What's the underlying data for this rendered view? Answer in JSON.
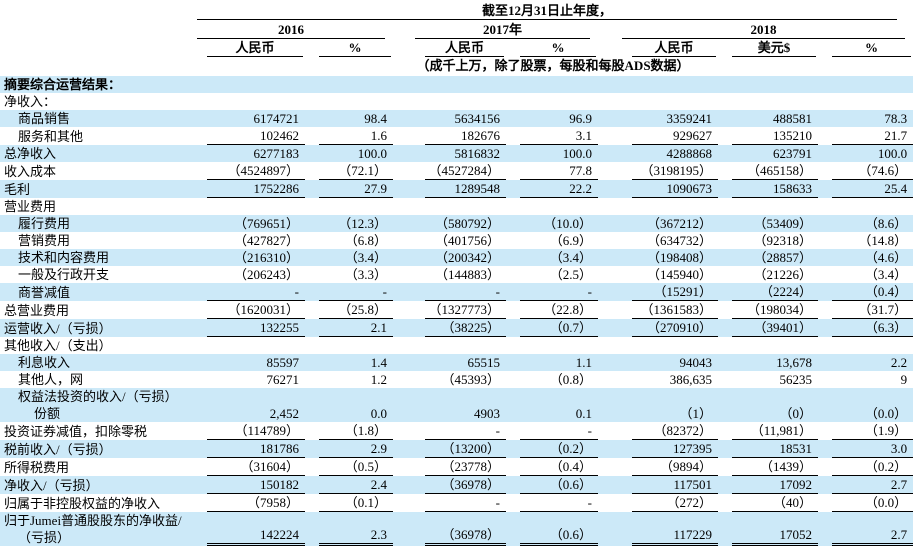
{
  "colors": {
    "stripe_blue": "#CCE9F8",
    "rule_black": "#000000",
    "text_black": "#000000"
  },
  "header": {
    "title": "截至12月31日止年度，",
    "subtitle": "（成千上万，除了股票，每股和每股ADS数据）",
    "year_groups": [
      {
        "label": "2016",
        "columns": [
          "人民币",
          "%"
        ]
      },
      {
        "label": "2017年",
        "columns": [
          "人民币",
          "%"
        ]
      },
      {
        "label": "2018",
        "columns": [
          "人民币",
          "美元$",
          "%"
        ]
      }
    ]
  },
  "table": {
    "rows": [
      {
        "label_lines": [
          {
            "text": "摘要综合运营结果：",
            "indent": 0,
            "bold": true
          }
        ],
        "values": [
          "",
          "",
          "",
          "",
          "",
          "",
          ""
        ],
        "shaded": true,
        "underline": "none"
      },
      {
        "label_lines": [
          {
            "text": "净收入：",
            "indent": 0
          }
        ],
        "values": [
          "",
          "",
          "",
          "",
          "",
          "",
          ""
        ],
        "shaded": false,
        "underline": "none"
      },
      {
        "label_lines": [
          {
            "text": "商品销售",
            "indent": 1
          }
        ],
        "values": [
          "6174721",
          "98.4",
          "5634156",
          "96.9",
          "3359241",
          "488581",
          "78.3"
        ],
        "shaded": true,
        "underline": "none"
      },
      {
        "label_lines": [
          {
            "text": "服务和其他",
            "indent": 1
          }
        ],
        "values": [
          "102462",
          "1.6",
          "182676",
          "3.1",
          "929627",
          "135210",
          "21.7"
        ],
        "shaded": false,
        "underline": "single"
      },
      {
        "label_lines": [
          {
            "text": "总净收入",
            "indent": 0
          }
        ],
        "values": [
          "6277183",
          "100.0",
          "5816832",
          "100.0",
          "4288868",
          "623791",
          "100.0"
        ],
        "shaded": true,
        "underline": "none"
      },
      {
        "label_lines": [
          {
            "text": "收入成本",
            "indent": 0
          }
        ],
        "values": [
          "（4524897）",
          "（72.1）",
          "（4527284）",
          "77.8",
          "（3198195）",
          "（465158）",
          "（74.6）"
        ],
        "shaded": false,
        "underline": "single"
      },
      {
        "label_lines": [
          {
            "text": "毛利",
            "indent": 0
          }
        ],
        "values": [
          "1752286",
          "27.9",
          "1289548",
          "22.2",
          "1090673",
          "158633",
          "25.4"
        ],
        "shaded": true,
        "underline": "single"
      },
      {
        "label_lines": [
          {
            "text": "营业费用",
            "indent": 0
          }
        ],
        "values": [
          "",
          "",
          "",
          "",
          "",
          "",
          ""
        ],
        "shaded": false,
        "underline": "none"
      },
      {
        "label_lines": [
          {
            "text": "履行费用",
            "indent": 1
          }
        ],
        "values": [
          "（769651）",
          "（12.3）",
          "（580792）",
          "（10.0）",
          "（367212）",
          "（53409）",
          "（8.6）"
        ],
        "shaded": true,
        "underline": "none"
      },
      {
        "label_lines": [
          {
            "text": "营销费用",
            "indent": 1
          }
        ],
        "values": [
          "（427827）",
          "（6.8）",
          "（401756）",
          "（6.9）",
          "（634732）",
          "（92318）",
          "（14.8）"
        ],
        "shaded": false,
        "underline": "none"
      },
      {
        "label_lines": [
          {
            "text": "技术和内容费用",
            "indent": 1
          }
        ],
        "values": [
          "（216310）",
          "（3.4）",
          "（200342）",
          "（3.4）",
          "（198408）",
          "（28857）",
          "（4.6）"
        ],
        "shaded": true,
        "underline": "none"
      },
      {
        "label_lines": [
          {
            "text": "一般及行政开支",
            "indent": 1
          }
        ],
        "values": [
          "（206243）",
          "（3.3）",
          "（144883）",
          "（2.5）",
          "（145940）",
          "（21226）",
          "（3.4）"
        ],
        "shaded": false,
        "underline": "none"
      },
      {
        "label_lines": [
          {
            "text": "商誉减值",
            "indent": 1
          }
        ],
        "values": [
          "-",
          "-",
          "-",
          "-",
          "（15291）",
          "（2224）",
          "（0.4）"
        ],
        "shaded": true,
        "underline": "single"
      },
      {
        "label_lines": [
          {
            "text": "总营业费用",
            "indent": 0
          }
        ],
        "values": [
          "（1620031）",
          "（25.8）",
          "（1327773）",
          "（22.8）",
          "（1361583）",
          "（198034）",
          "（31.7）"
        ],
        "shaded": false,
        "underline": "single"
      },
      {
        "label_lines": [
          {
            "text": "运营收入/（亏损）",
            "indent": 0
          }
        ],
        "values": [
          "132255",
          "2.1",
          "（38225）",
          "（0.7）",
          "（270910）",
          "（39401）",
          "（6.3）"
        ],
        "shaded": true,
        "underline": "single"
      },
      {
        "label_lines": [
          {
            "text": "其他收入/（支出）",
            "indent": 0
          }
        ],
        "values": [
          "",
          "",
          "",
          "",
          "",
          "",
          ""
        ],
        "shaded": false,
        "underline": "none"
      },
      {
        "label_lines": [
          {
            "text": "利息收入",
            "indent": 1
          }
        ],
        "values": [
          "85597",
          "1.4",
          "65515",
          "1.1",
          "94043",
          "13,678",
          "2.2"
        ],
        "shaded": true,
        "underline": "none"
      },
      {
        "label_lines": [
          {
            "text": "其他人，网",
            "indent": 1
          }
        ],
        "values": [
          "76271",
          "1.2",
          "（45393）",
          "（0.8）",
          "386,635",
          "56235",
          "9"
        ],
        "shaded": false,
        "underline": "none"
      },
      {
        "label_lines": [
          {
            "text": "权益法投资的收入/（亏损）",
            "indent": 1
          },
          {
            "text": "份额",
            "indent": 2
          }
        ],
        "values": [
          "2,452",
          "0.0",
          "4903",
          "0.1",
          "（1）",
          "（0）",
          "（0.0）"
        ],
        "shaded": true,
        "underline": "none"
      },
      {
        "label_lines": [
          {
            "text": "投资证券减值，扣除零税",
            "indent": 0
          }
        ],
        "values": [
          "（114789）",
          "（1.8）",
          "-",
          "-",
          "（82372）",
          "（11,981）",
          "（1.9）"
        ],
        "shaded": false,
        "underline": "single"
      },
      {
        "label_lines": [
          {
            "text": "税前收入/（亏损）",
            "indent": 0
          }
        ],
        "values": [
          "181786",
          "2.9",
          "（13200）",
          "（0.2）",
          "127395",
          "18531",
          "3.0"
        ],
        "shaded": true,
        "underline": "single"
      },
      {
        "label_lines": [
          {
            "text": "所得税费用",
            "indent": 0
          }
        ],
        "values": [
          "（31604）",
          "（0.5）",
          "（23778）",
          "（0.4）",
          "（9894）",
          "（1439）",
          "（0.2）"
        ],
        "shaded": false,
        "underline": "single"
      },
      {
        "label_lines": [
          {
            "text": "净收入/（亏损）",
            "indent": 0
          }
        ],
        "values": [
          "150182",
          "2.4",
          "（36978）",
          "（0.6）",
          "117501",
          "17092",
          "2.7"
        ],
        "shaded": true,
        "underline": "single"
      },
      {
        "label_lines": [
          {
            "text": "归属于非控股权益的净收入",
            "indent": 0
          }
        ],
        "values": [
          "（7958）",
          "（0.1）",
          "-",
          "-",
          "（272）",
          "（40）",
          "（0.0）"
        ],
        "shaded": false,
        "underline": "single"
      },
      {
        "label_lines": [
          {
            "text": "归于Jumei普通股股东的净收益/",
            "indent": 0
          },
          {
            "text": "（亏损）",
            "indent": 1
          }
        ],
        "values": [
          "142224",
          "2.3",
          "（36978）",
          "（0.6）",
          "117229",
          "17052",
          "2.7"
        ],
        "shaded": true,
        "underline": "double"
      }
    ]
  }
}
